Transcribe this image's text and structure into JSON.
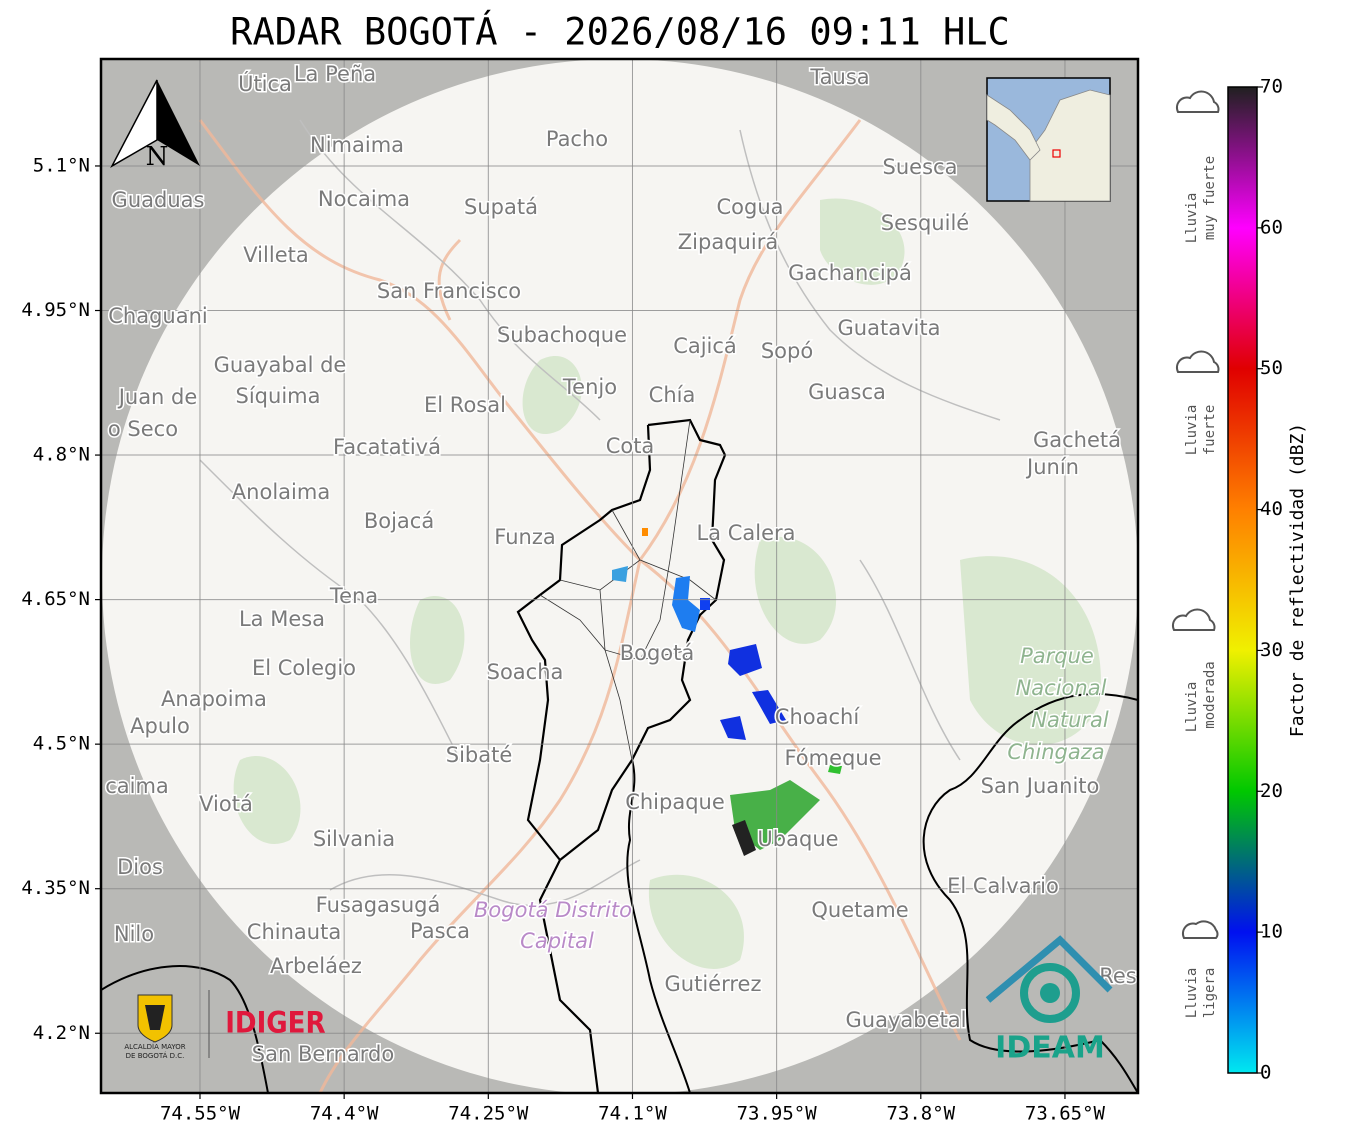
{
  "title": "RADAR BOGOTÁ - 2026/08/16 09:11 HLC",
  "map": {
    "xlim": [
      -74.653,
      -73.574
    ],
    "ylim": [
      4.138,
      5.211
    ],
    "xticks": [
      {
        "value": -74.55,
        "label": "74.55°W"
      },
      {
        "value": -74.4,
        "label": "74.4°W"
      },
      {
        "value": -74.25,
        "label": "74.25°W"
      },
      {
        "value": -74.1,
        "label": "74.1°W"
      },
      {
        "value": -73.95,
        "label": "73.95°W"
      },
      {
        "value": -73.8,
        "label": "73.8°W"
      },
      {
        "value": -73.65,
        "label": "73.65°W"
      }
    ],
    "yticks": [
      {
        "value": 5.1,
        "label": "5.1°N"
      },
      {
        "value": 4.95,
        "label": "4.95°N"
      },
      {
        "value": 4.8,
        "label": "4.8°N"
      },
      {
        "value": 4.65,
        "label": "4.65°N"
      },
      {
        "value": 4.5,
        "label": "4.5°N"
      },
      {
        "value": 4.35,
        "label": "4.35°N"
      },
      {
        "value": 4.2,
        "label": "4.2°N"
      }
    ],
    "grid": true,
    "north": "N",
    "places": [
      "Útica",
      "La Peña",
      "Tausa",
      "Pacho",
      "Nimaima",
      "Guaduas",
      "Nocaima",
      "Supatá",
      "Cogua",
      "Suesca",
      "Sesquilé",
      "Zipaquirá",
      "Villeta",
      "Gachancipá",
      "San Francisco",
      "Chaguani",
      "Guatavita",
      "Subachoque",
      "Cajicá",
      "Sopó",
      "Guayabal de",
      "Síquima",
      "Juan de",
      "Tenjo",
      "Chía",
      "Guasca",
      "El Rosal",
      "o Seco",
      "Facatativá",
      "Cota",
      "Gachetá",
      "Junín",
      "Anolaima",
      "Bojacá",
      "Funza",
      "La Calera",
      "Tena",
      "La Mesa",
      "El Colegio",
      "Bogotá",
      "Soacha",
      "Anapoima",
      "Apulo",
      "Choachí",
      "Sibaté",
      "Fómeque",
      "San Juanito",
      "caima",
      "Viotá",
      "Chipaque",
      "Silvania",
      "Ubaque",
      "Dios",
      "El Calvario",
      "Fusagasugá",
      "Quetame",
      "Nilo",
      "Chinauta",
      "Pasca",
      "Arbeláez",
      "Gutiérrez",
      "Guayabetal",
      "San Bernardo",
      "Res"
    ],
    "park": [
      "Parque",
      "Nacional",
      "Natural",
      "Chingaza"
    ],
    "district": [
      "Bogotá Distrito",
      "Capital"
    ]
  },
  "colorbar": {
    "label": "Factor de reflectividad (dBZ)",
    "ticks": [
      0,
      10,
      20,
      30,
      40,
      50,
      60,
      70
    ],
    "colors": [
      "#00e8f0",
      "#0010f0",
      "#00c800",
      "#f0f000",
      "#ff8000",
      "#e00000",
      "#ff00ff",
      "#202020"
    ]
  },
  "legend": [
    [
      "Lluvia",
      "muy fuerte"
    ],
    [
      "Lluvia",
      "fuerte"
    ],
    [
      "Lluvia",
      "moderada"
    ],
    [
      "Lluvia",
      "ligera"
    ]
  ],
  "logos": {
    "alcaldia": [
      "ALCALDÍA MAYOR",
      "DE BOGOTÁ D.C."
    ],
    "idiger": "IDIGER",
    "ideam": "IDEAM"
  }
}
